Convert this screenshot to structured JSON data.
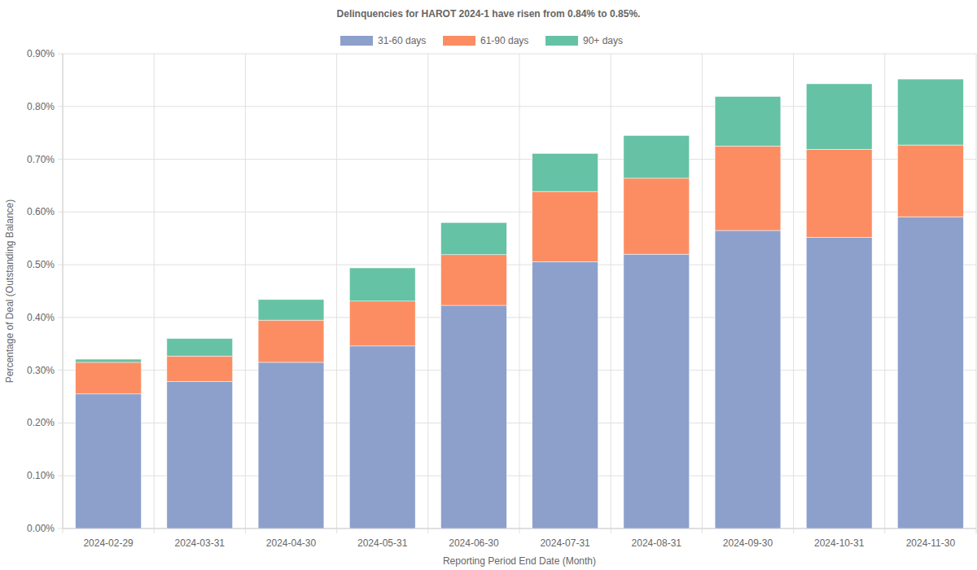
{
  "chart_data": {
    "type": "bar",
    "stacked": true,
    "grid": true,
    "legend": "top",
    "title": "Delinquencies for HAROT 2024-1 have risen from 0.84% to 0.85%.",
    "x_label": "Reporting Period End Date (Month)",
    "y_label": "Percentage of Deal (Outstanding Balance)",
    "categories": [
      "2024-02-29",
      "2024-03-31",
      "2024-04-30",
      "2024-05-31",
      "2024-06-30",
      "2024-07-31",
      "2024-08-31",
      "2024-09-30",
      "2024-10-31",
      "2024-11-30"
    ],
    "series": [
      {
        "name": "31-60 days",
        "color": "#8da0cb",
        "values": [
          0.255,
          0.279,
          0.315,
          0.346,
          0.423,
          0.506,
          0.52,
          0.565,
          0.552,
          0.591
        ]
      },
      {
        "name": "61-90 days",
        "color": "#fc8d62",
        "values": [
          0.06,
          0.048,
          0.08,
          0.085,
          0.096,
          0.133,
          0.144,
          0.16,
          0.167,
          0.136
        ]
      },
      {
        "name": "90+ days",
        "color": "#66c2a5",
        "values": [
          0.006,
          0.033,
          0.039,
          0.063,
          0.061,
          0.072,
          0.081,
          0.094,
          0.124,
          0.125
        ]
      }
    ],
    "ylim": [
      0,
      0.9
    ],
    "yticks": [
      {
        "value": 0,
        "label": "0.00%"
      },
      {
        "value": 0.1,
        "label": "0.10%"
      },
      {
        "value": 0.2,
        "label": "0.20%"
      },
      {
        "value": 0.3,
        "label": "0.30%"
      },
      {
        "value": 0.4,
        "label": "0.40%"
      },
      {
        "value": 0.5,
        "label": "0.50%"
      },
      {
        "value": 0.6,
        "label": "0.60%"
      },
      {
        "value": 0.7,
        "label": "0.70%"
      },
      {
        "value": 0.8,
        "label": "0.80%"
      },
      {
        "value": 0.9,
        "label": "0.90%"
      }
    ]
  }
}
